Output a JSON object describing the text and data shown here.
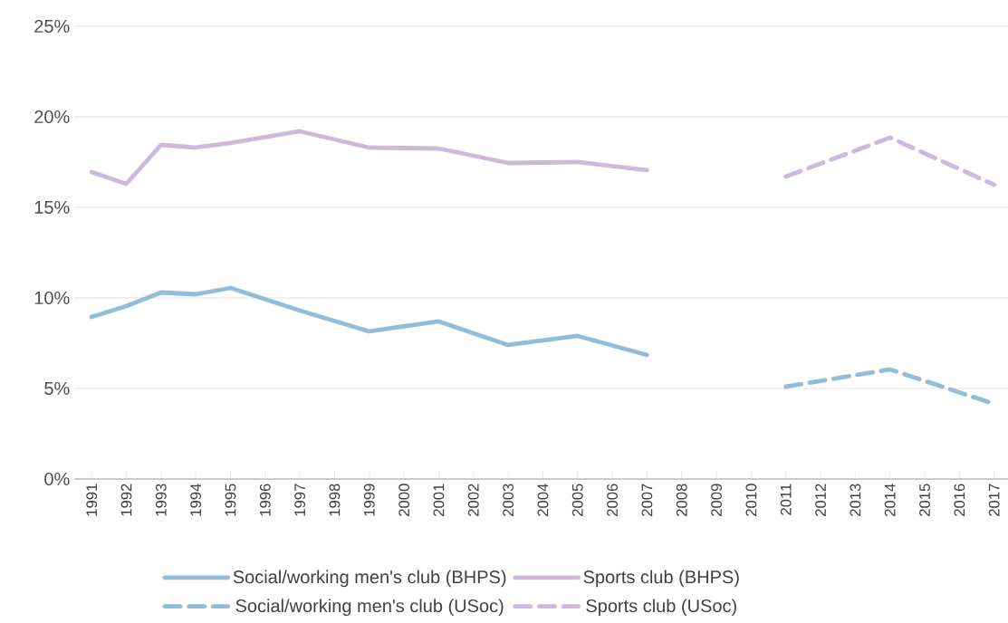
{
  "chart_data": {
    "type": "line",
    "xlim": [
      1990.5,
      2017.4
    ],
    "xticks": [
      1991,
      1992,
      1993,
      1994,
      1995,
      1996,
      1997,
      1998,
      1999,
      2000,
      2001,
      2002,
      2003,
      2004,
      2005,
      2006,
      2007,
      2008,
      2009,
      2010,
      2011,
      2012,
      2013,
      2014,
      2015,
      2016,
      2017
    ],
    "ylim": [
      0,
      25
    ],
    "yticks": [
      {
        "value": 0,
        "label": "0%"
      },
      {
        "value": 5,
        "label": "5%"
      },
      {
        "value": 10,
        "label": "10%"
      },
      {
        "value": 15,
        "label": "15%"
      },
      {
        "value": 20,
        "label": "20%"
      },
      {
        "value": 25,
        "label": "25%"
      }
    ],
    "grid": "y",
    "legend": "bottom",
    "marker": "none",
    "series": [
      {
        "name": "Social/working men's club (BHPS)",
        "color": "#92bcd8",
        "line_style": "solid",
        "x": [
          1991,
          1992,
          1993,
          1994,
          1995,
          1997,
          1999,
          2001,
          2003,
          2005,
          2007
        ],
        "values": [
          8.95,
          9.55,
          10.3,
          10.2,
          10.55,
          9.3,
          8.15,
          8.7,
          7.4,
          7.9,
          6.85
        ]
      },
      {
        "name": "Sports club (BHPS)",
        "color": "#cdb9dc",
        "line_style": "solid",
        "x": [
          1991,
          1992,
          1993,
          1994,
          1995,
          1997,
          1999,
          2001,
          2003,
          2005,
          2007
        ],
        "values": [
          16.95,
          16.3,
          18.45,
          18.3,
          18.55,
          19.2,
          18.3,
          18.25,
          17.45,
          17.5,
          17.05
        ]
      },
      {
        "name": "Social/working men's club (USoc)",
        "color": "#92bcd8",
        "line_style": "dashed",
        "x": [
          2011,
          2014,
          2017
        ],
        "values": [
          5.1,
          6.05,
          4.15
        ]
      },
      {
        "name": "Sports club (USoc)",
        "color": "#cdb9dc",
        "line_style": "dashed",
        "x": [
          2011,
          2014,
          2017
        ],
        "values": [
          16.7,
          18.85,
          16.25
        ]
      }
    ]
  }
}
